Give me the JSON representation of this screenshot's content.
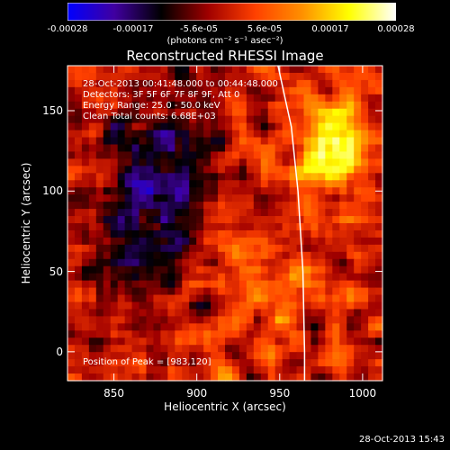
{
  "colorbar": {
    "ticks": [
      "-0.00028",
      "-0.00017",
      "-5.6e-05",
      "5.6e-05",
      "0.00017",
      "0.00028"
    ],
    "units": "(photons cm⁻² s⁻¹ asec⁻²)"
  },
  "title": "Reconstructed RHESSI Image",
  "annotations": {
    "time": "28-Oct-2013 00:41:48.000 to 00:44:48.000",
    "detectors": "Detectors: 3F 5F 6F 7F 8F 9F, Att 0",
    "energy": "Energy Range: 25.0 - 50.0 keV",
    "clean": "Clean    Total counts: 6.68E+03",
    "peak": "Position of Peak = [983,120]"
  },
  "footer": "28-Oct-2013 15:43",
  "chart_data": {
    "type": "heatmap",
    "title": "Reconstructed RHESSI Image",
    "xlabel": "Heliocentric X (arcsec)",
    "ylabel": "Heliocentric Y (arcsec)",
    "xlim": [
      822,
      1012
    ],
    "ylim": [
      -18,
      178
    ],
    "xticks": [
      850,
      900,
      950,
      1000
    ],
    "yticks": [
      0,
      50,
      100,
      150
    ],
    "colorbar_range": [
      -0.00028,
      0.00028
    ],
    "peak_position": [
      983,
      120
    ],
    "limb_x_at_y": [
      [
        949,
        178
      ],
      [
        957,
        140
      ],
      [
        961,
        100
      ],
      [
        964,
        50
      ],
      [
        965,
        0
      ],
      [
        965,
        -18
      ]
    ],
    "colormap": [
      "#0000ff",
      "#4000a0",
      "#000000",
      "#a00000",
      "#ff4000",
      "#ff9000",
      "#ffff00",
      "#ffffff"
    ]
  }
}
